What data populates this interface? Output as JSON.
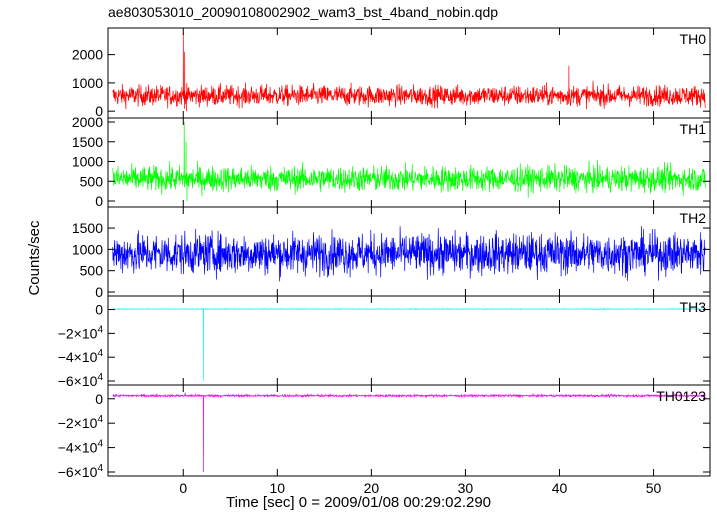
{
  "chart_data": {
    "type": "line",
    "title": "ae803053010_20090108002902_wam3_bst_4band_nobin.qdp",
    "xlabel": "Time [sec] 0 = 2009/01/08 00:29:02.290",
    "ylabel": "Counts/sec",
    "xlim": [
      -8,
      56
    ],
    "x_ticks": [
      {
        "value": 0,
        "label": "0"
      },
      {
        "value": 10,
        "label": "10"
      },
      {
        "value": 20,
        "label": "20"
      },
      {
        "value": 30,
        "label": "30"
      },
      {
        "value": 40,
        "label": "40"
      },
      {
        "value": 50,
        "label": "50"
      }
    ],
    "grid": false,
    "panels": [
      {
        "name": "TH0",
        "color": "#ff0000",
        "ylim": [
          -100,
          2800
        ],
        "ticks": [
          {
            "value": 0,
            "label": "0"
          },
          {
            "value": 1000,
            "label": "1000"
          },
          {
            "value": 2000,
            "label": "2000"
          }
        ],
        "mean": 550,
        "noise": 260,
        "events": [
          {
            "t": 0.0,
            "value": 2800
          },
          {
            "t": 0.15,
            "value": 2100
          },
          {
            "t": 0.35,
            "value": 0
          },
          {
            "t": 41.0,
            "value": 1600
          }
        ]
      },
      {
        "name": "TH1",
        "color": "#00ff00",
        "ylim": [
          -50,
          2000
        ],
        "ticks": [
          {
            "value": 0,
            "label": "0"
          },
          {
            "value": 500,
            "label": "500"
          },
          {
            "value": 1000,
            "label": "1000"
          },
          {
            "value": 1500,
            "label": "1500"
          },
          {
            "value": 2000,
            "label": "2000"
          }
        ],
        "mean": 560,
        "noise": 230,
        "events": [
          {
            "t": 0.1,
            "value": 2000
          },
          {
            "t": 0.3,
            "value": 1500
          },
          {
            "t": 0.4,
            "value": 0
          }
        ]
      },
      {
        "name": "TH2",
        "color": "#0000ff",
        "ylim": [
          0,
          1900
        ],
        "ticks": [
          {
            "value": 0,
            "label": "0"
          },
          {
            "value": 500,
            "label": "500"
          },
          {
            "value": 1000,
            "label": "1000"
          },
          {
            "value": 1500,
            "label": "1500"
          }
        ],
        "mean": 900,
        "noise": 340,
        "events": []
      },
      {
        "name": "TH3",
        "color": "#00ffff",
        "ylim": [
          -60000,
          8000
        ],
        "ticks": [
          {
            "value": 0,
            "label": "0",
            "mantissa": "",
            "exp": ""
          },
          {
            "value": -20000,
            "label": "−2×10⁴",
            "mantissa": "−2×10",
            "exp": "4"
          },
          {
            "value": -40000,
            "label": "−4×10⁴",
            "mantissa": "−4×10",
            "exp": "4"
          },
          {
            "value": -60000,
            "label": "−6×10⁴",
            "mantissa": "−6×10",
            "exp": "4"
          }
        ],
        "mean": 400,
        "noise": 250,
        "events": [
          {
            "t": 2.15,
            "value": -60000
          }
        ]
      },
      {
        "name": "TH0123",
        "color": "#ff00ff",
        "ylim": [
          -60000,
          8000
        ],
        "ticks": [
          {
            "value": 0,
            "label": "0",
            "mantissa": "",
            "exp": ""
          },
          {
            "value": -20000,
            "label": "−2×10⁴",
            "mantissa": "−2×10",
            "exp": "4"
          },
          {
            "value": -40000,
            "label": "−4×10⁴",
            "mantissa": "−4×10",
            "exp": "4"
          },
          {
            "value": -60000,
            "label": "−6×10⁴",
            "mantissa": "−6×10",
            "exp": "4"
          }
        ],
        "mean": 2500,
        "noise": 700,
        "events": [
          {
            "t": 0.2,
            "value": 5000
          },
          {
            "t": 2.15,
            "value": -60000
          }
        ]
      }
    ]
  }
}
